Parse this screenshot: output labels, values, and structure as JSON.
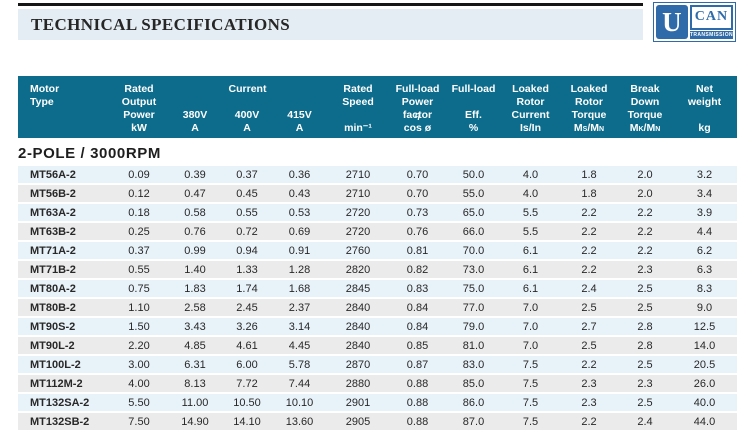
{
  "header": {
    "title": "TECHNICAL SPECIFICATIONS"
  },
  "logo": {
    "u": "U",
    "can": "CAN",
    "transmission": "TRANSMISSION"
  },
  "colors": {
    "table_header": "#0d6c8c",
    "row_blue": "#e8f2f9",
    "row_gray": "#ebebeb",
    "logo_blue": "#2f6ba8",
    "banner_bg": "#e4edf3"
  },
  "table": {
    "columns": {
      "motor": {
        "label": "Motor\nType"
      },
      "output": {
        "label": "Rated\nOutput\nPower",
        "unit": "kW"
      },
      "current": {
        "label": "Current",
        "sub": {
          "v380": "380V",
          "v400": "400V",
          "v415": "415V"
        },
        "unit": "A"
      },
      "speed": {
        "label": "Rated\nSpeed",
        "unit": "min⁻¹"
      },
      "power_factor": {
        "label": "Full-load\nPower factor",
        "symbol": "η",
        "unit": "cos ø"
      },
      "efficiency": {
        "label": "Full-load",
        "label2": "Eff.",
        "unit": "%"
      },
      "locked_rotor_current": {
        "label": "Loaked\nRotor\nCurrent",
        "unit": "Is/In"
      },
      "locked_rotor_torque": {
        "label": "Loaked\nRotor\nTorque",
        "unit": "Ms/Mn"
      },
      "breakdown_torque": {
        "label": "Break\nDown\nTorque",
        "unit": "Mk/Mn"
      },
      "weight": {
        "label": "Net\nweight",
        "unit": "kg"
      }
    },
    "section_title": "2-POLE / 3000RPM",
    "rows": [
      {
        "motor": "MT56A-2",
        "values": [
          "0.09",
          "0.39",
          "0.37",
          "0.36",
          "2710",
          "0.70",
          "50.0",
          "4.0",
          "1.8",
          "2.0",
          "3.2"
        ]
      },
      {
        "motor": "MT56B-2",
        "values": [
          "0.12",
          "0.47",
          "0.45",
          "0.43",
          "2710",
          "0.70",
          "55.0",
          "4.0",
          "1.8",
          "2.0",
          "3.4"
        ]
      },
      {
        "motor": "MT63A-2",
        "values": [
          "0.18",
          "0.58",
          "0.55",
          "0.53",
          "2720",
          "0.73",
          "65.0",
          "5.5",
          "2.2",
          "2.2",
          "3.9"
        ]
      },
      {
        "motor": "MT63B-2",
        "values": [
          "0.25",
          "0.76",
          "0.72",
          "0.69",
          "2720",
          "0.76",
          "66.0",
          "5.5",
          "2.2",
          "2.2",
          "4.4"
        ]
      },
      {
        "motor": "MT71A-2",
        "values": [
          "0.37",
          "0.99",
          "0.94",
          "0.91",
          "2760",
          "0.81",
          "70.0",
          "6.1",
          "2.2",
          "2.2",
          "6.2"
        ]
      },
      {
        "motor": "MT71B-2",
        "values": [
          "0.55",
          "1.40",
          "1.33",
          "1.28",
          "2820",
          "0.82",
          "73.0",
          "6.1",
          "2.2",
          "2.3",
          "6.3"
        ]
      },
      {
        "motor": "MT80A-2",
        "values": [
          "0.75",
          "1.83",
          "1.74",
          "1.68",
          "2845",
          "0.83",
          "75.0",
          "6.1",
          "2.4",
          "2.5",
          "8.3"
        ]
      },
      {
        "motor": "MT80B-2",
        "values": [
          "1.10",
          "2.58",
          "2.45",
          "2.37",
          "2840",
          "0.84",
          "77.0",
          "7.0",
          "2.5",
          "2.5",
          "9.0"
        ]
      },
      {
        "motor": "MT90S-2",
        "values": [
          "1.50",
          "3.43",
          "3.26",
          "3.14",
          "2840",
          "0.84",
          "79.0",
          "7.0",
          "2.7",
          "2.8",
          "12.5"
        ]
      },
      {
        "motor": "MT90L-2",
        "values": [
          "2.20",
          "4.85",
          "4.61",
          "4.45",
          "2840",
          "0.85",
          "81.0",
          "7.0",
          "2.5",
          "2.8",
          "14.0"
        ]
      },
      {
        "motor": "MT100L-2",
        "values": [
          "3.00",
          "6.31",
          "6.00",
          "5.78",
          "2870",
          "0.87",
          "83.0",
          "7.5",
          "2.2",
          "2.5",
          "20.5"
        ]
      },
      {
        "motor": "MT112M-2",
        "values": [
          "4.00",
          "8.13",
          "7.72",
          "7.44",
          "2880",
          "0.88",
          "85.0",
          "7.5",
          "2.3",
          "2.3",
          "26.0"
        ]
      },
      {
        "motor": "MT132SA-2",
        "values": [
          "5.50",
          "11.00",
          "10.50",
          "10.10",
          "2901",
          "0.88",
          "86.0",
          "7.5",
          "2.3",
          "2.5",
          "40.0"
        ]
      },
      {
        "motor": "MT132SB-2",
        "values": [
          "7.50",
          "14.90",
          "14.10",
          "13.60",
          "2905",
          "0.88",
          "87.0",
          "7.5",
          "2.2",
          "2.4",
          "44.0"
        ]
      }
    ]
  }
}
